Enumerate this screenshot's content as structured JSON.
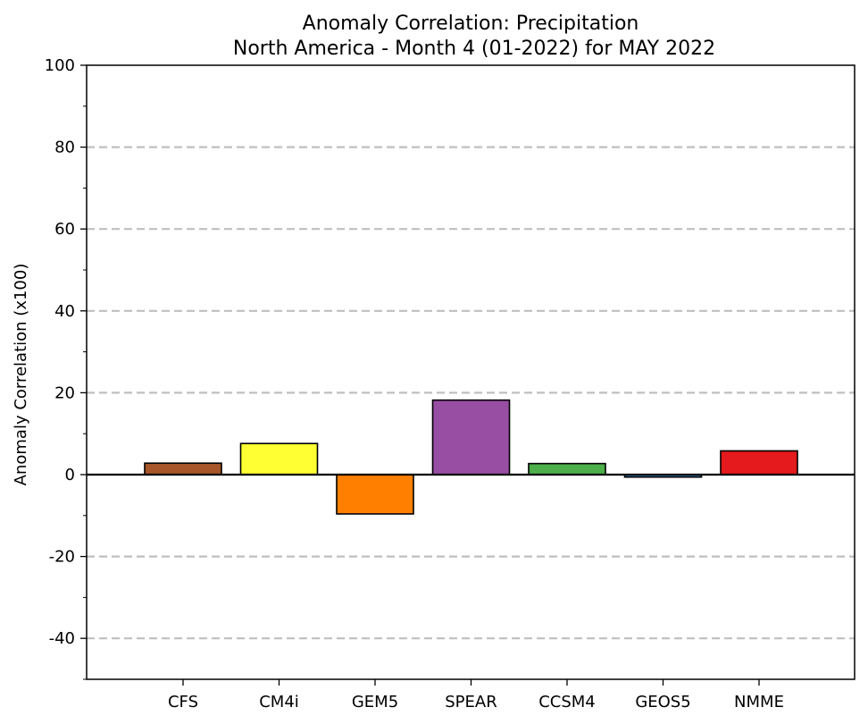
{
  "chart_data": {
    "type": "bar",
    "title": "Anomaly Correlation: Precipitation",
    "subtitle": "North America - Month 4 (01-2022) for MAY 2022",
    "xlabel": "",
    "ylabel": "Anomaly Correlation (x100)",
    "ylim": [
      -50,
      100
    ],
    "yticks": [
      -40,
      -20,
      0,
      20,
      40,
      60,
      80,
      100
    ],
    "grid": "horizontal dashed at labeled ticks except 0 and 100",
    "categories": [
      "CFS",
      "CM4i",
      "GEM5",
      "SPEAR",
      "CCSM4",
      "GEOS5",
      "NMME"
    ],
    "values": [
      2.8,
      7.6,
      -9.6,
      18.2,
      2.7,
      -0.6,
      5.8
    ],
    "colors": [
      "#a65628",
      "#ffff33",
      "#ff7f00",
      "#984ea3",
      "#4daf4a",
      "#377eb8",
      "#e41a1c"
    ],
    "gridColor": "#bfbfbf",
    "edgeColor": "#000000"
  }
}
